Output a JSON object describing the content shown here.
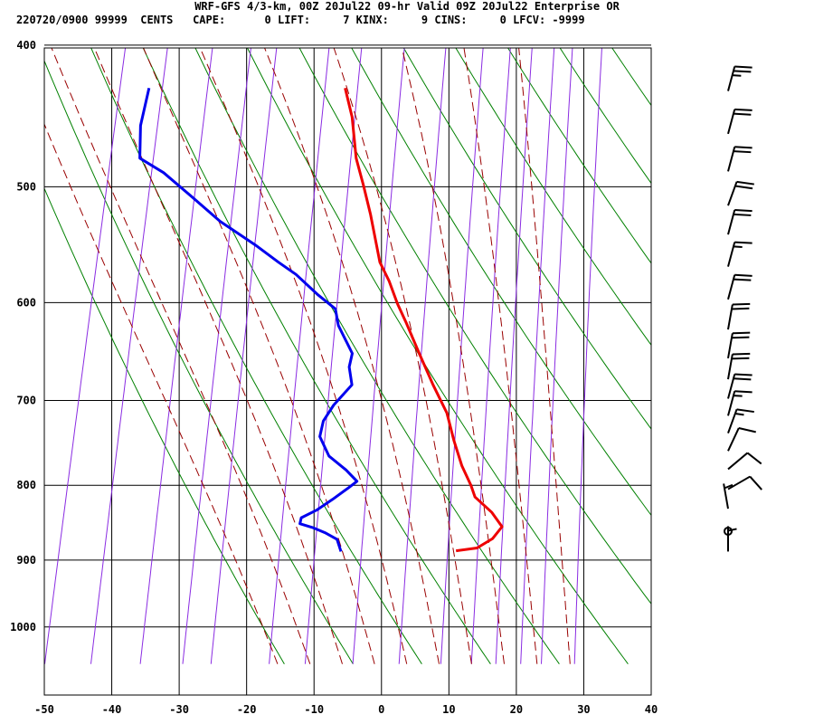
{
  "header": {
    "line1": "WRF-GFS 4/3-km, 00Z 20Jul22 09-hr Valid 09Z 20Jul22 Enterprise OR",
    "line2": "220720/0900 99999  CENTS   CAPE:      0 LIFT:     7 KINX:     9 CINS:     0 LFCV: -9999"
  },
  "chart_data": {
    "type": "line",
    "title": "",
    "xlabel": "",
    "ylabel": "",
    "x_ticks": [
      -50,
      -40,
      -30,
      -20,
      -10,
      0,
      10,
      20,
      30,
      40
    ],
    "y_ticks": [
      400,
      500,
      600,
      700,
      800,
      900,
      1000
    ],
    "xlim": [
      -50,
      40
    ],
    "ylim": [
      1040,
      400
    ],
    "y_scale": "log",
    "skew": "skew-t",
    "grid": true,
    "series": [
      {
        "role": "temperature",
        "color": "#ee0000",
        "points": [
          [
            16,
            887
          ],
          [
            19,
            883
          ],
          [
            21,
            870
          ],
          [
            22,
            854
          ],
          [
            20,
            835
          ],
          [
            17,
            815
          ],
          [
            16,
            800
          ],
          [
            14,
            776
          ],
          [
            12,
            746
          ],
          [
            10,
            714
          ],
          [
            7,
            683
          ],
          [
            4,
            651
          ],
          [
            1,
            620
          ],
          [
            -1,
            601
          ],
          [
            -3,
            580
          ],
          [
            -5,
            563
          ],
          [
            -8,
            522
          ],
          [
            -10,
            499
          ],
          [
            -12,
            478
          ],
          [
            -14,
            448
          ],
          [
            -16,
            428
          ]
        ]
      },
      {
        "role": "dewpoint",
        "color": "#0000ee",
        "points": [
          [
            -1,
            888
          ],
          [
            -2,
            871
          ],
          [
            -4,
            862
          ],
          [
            -6,
            855
          ],
          [
            -8,
            850
          ],
          [
            -8,
            842
          ],
          [
            -6,
            832
          ],
          [
            -4,
            818
          ],
          [
            -2,
            803
          ],
          [
            -1,
            795
          ],
          [
            -3,
            781
          ],
          [
            -6,
            764
          ],
          [
            -8,
            741
          ],
          [
            -8,
            723
          ],
          [
            -7,
            705
          ],
          [
            -5,
            683
          ],
          [
            -6,
            664
          ],
          [
            -6,
            650
          ],
          [
            -9,
            622
          ],
          [
            -10,
            606
          ],
          [
            -13,
            593
          ],
          [
            -17,
            574
          ],
          [
            -20,
            563
          ],
          [
            -24,
            548
          ],
          [
            -30,
            528
          ],
          [
            -35,
            508
          ],
          [
            -40,
            489
          ],
          [
            -44,
            478
          ],
          [
            -45,
            454
          ],
          [
            -45,
            428
          ]
        ]
      }
    ],
    "line_colors": {
      "grid": "#000000",
      "dry_adiabat": "#008000",
      "moist_adiabat": "#990000",
      "mixing_ratio": "#8a2be2",
      "wind_barb": "#000000"
    },
    "dry_adiabats_theta_c": [
      -10,
      0,
      10,
      20,
      30,
      40,
      50,
      60,
      70,
      80,
      90,
      100,
      110
    ],
    "moist_adiabats_thetae_c": [
      -10,
      -5,
      0,
      5,
      10,
      15,
      20,
      25,
      30,
      35
    ],
    "mixing_ratio_lines_gkg": [
      0.1,
      0.2,
      0.4,
      0.7,
      1,
      2,
      3,
      5,
      8,
      12,
      16,
      20,
      25,
      30,
      40
    ],
    "wind_barbs": [
      {
        "p": 888,
        "dir": 0,
        "spd": 5
      },
      {
        "p": 860,
        "dir": 180,
        "spd": 0
      },
      {
        "p": 830,
        "dir": 350,
        "spd": 5
      },
      {
        "p": 805,
        "dir": 60,
        "spd": 10
      },
      {
        "p": 780,
        "dir": 50,
        "spd": 10
      },
      {
        "p": 758,
        "dir": 25,
        "spd": 10
      },
      {
        "p": 737,
        "dir": 20,
        "spd": 15
      },
      {
        "p": 717,
        "dir": 15,
        "spd": 15
      },
      {
        "p": 698,
        "dir": 15,
        "spd": 20
      },
      {
        "p": 677,
        "dir": 10,
        "spd": 20
      },
      {
        "p": 655,
        "dir": 10,
        "spd": 20
      },
      {
        "p": 626,
        "dir": 10,
        "spd": 20
      },
      {
        "p": 597,
        "dir": 15,
        "spd": 20
      },
      {
        "p": 567,
        "dir": 15,
        "spd": 15
      },
      {
        "p": 539,
        "dir": 15,
        "spd": 20
      },
      {
        "p": 515,
        "dir": 20,
        "spd": 20
      },
      {
        "p": 488,
        "dir": 15,
        "spd": 20
      },
      {
        "p": 460,
        "dir": 15,
        "spd": 20
      },
      {
        "p": 430,
        "dir": 15,
        "spd": 25
      }
    ]
  }
}
